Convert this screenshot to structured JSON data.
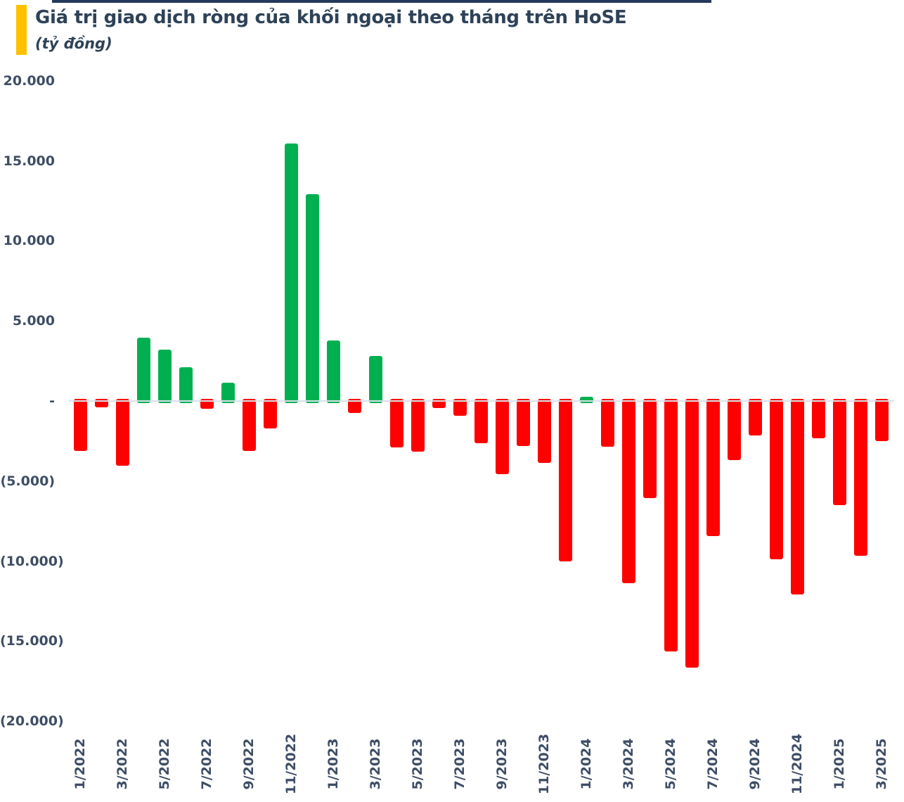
{
  "header": {
    "title": "Giá trị giao dịch ròng của khối ngoại theo tháng trên HoSE",
    "subtitle": "(tỷ đồng)"
  },
  "colors": {
    "accent": "#ffc000",
    "title": "#2e4257",
    "axis": "#3e4d66",
    "positive": "#00b050",
    "negative": "#ff0000",
    "zero_line": "#d8e0e8",
    "top_strip": "#24395b"
  },
  "chart_data": {
    "type": "bar",
    "title": "Giá trị giao dịch ròng của khối ngoại theo tháng trên HoSE",
    "unit": "tỷ đồng",
    "xlabel": "",
    "ylabel": "",
    "ylim": [
      -20000,
      20000
    ],
    "grid": false,
    "legend": "none",
    "x_label_every": 2,
    "categories": [
      "1/2022",
      "2/2022",
      "3/2022",
      "4/2022",
      "5/2022",
      "6/2022",
      "7/2022",
      "8/2022",
      "9/2022",
      "10/2022",
      "11/2022",
      "12/2022",
      "1/2023",
      "2/2023",
      "3/2023",
      "4/2023",
      "5/2023",
      "6/2023",
      "7/2023",
      "8/2023",
      "9/2023",
      "10/2023",
      "11/2023",
      "12/2023",
      "1/2024",
      "2/2024",
      "3/2024",
      "4/2024",
      "5/2024",
      "6/2024",
      "7/2024",
      "8/2024",
      "9/2024",
      "10/2024",
      "11/2024",
      "12/2024",
      "1/2025",
      "2/2025",
      "3/2025"
    ],
    "values": [
      -3100,
      -400,
      -4050,
      3950,
      3200,
      2100,
      -500,
      1150,
      -3100,
      -1700,
      16100,
      12900,
      3800,
      -750,
      2800,
      -2900,
      -3150,
      -450,
      -930,
      -2650,
      -4550,
      -2800,
      -3850,
      -10000,
      250,
      -2850,
      -11400,
      -6050,
      -15650,
      -16650,
      -8450,
      -3700,
      -2150,
      -9900,
      -12100,
      -2350,
      -6500,
      -9650,
      -2500
    ],
    "y_ticks": [
      {
        "label": "20.000",
        "value": 20000
      },
      {
        "label": "15.000",
        "value": 15000
      },
      {
        "label": "10.000",
        "value": 10000
      },
      {
        "label": "5.000",
        "value": 5000
      },
      {
        "label": "-",
        "value": 0
      },
      {
        "label": "(5.000)",
        "value": -5000
      },
      {
        "label": "(10.000)",
        "value": -10000
      },
      {
        "label": "(15.000)",
        "value": -15000
      },
      {
        "label": "(20.000)",
        "value": -20000
      }
    ]
  }
}
